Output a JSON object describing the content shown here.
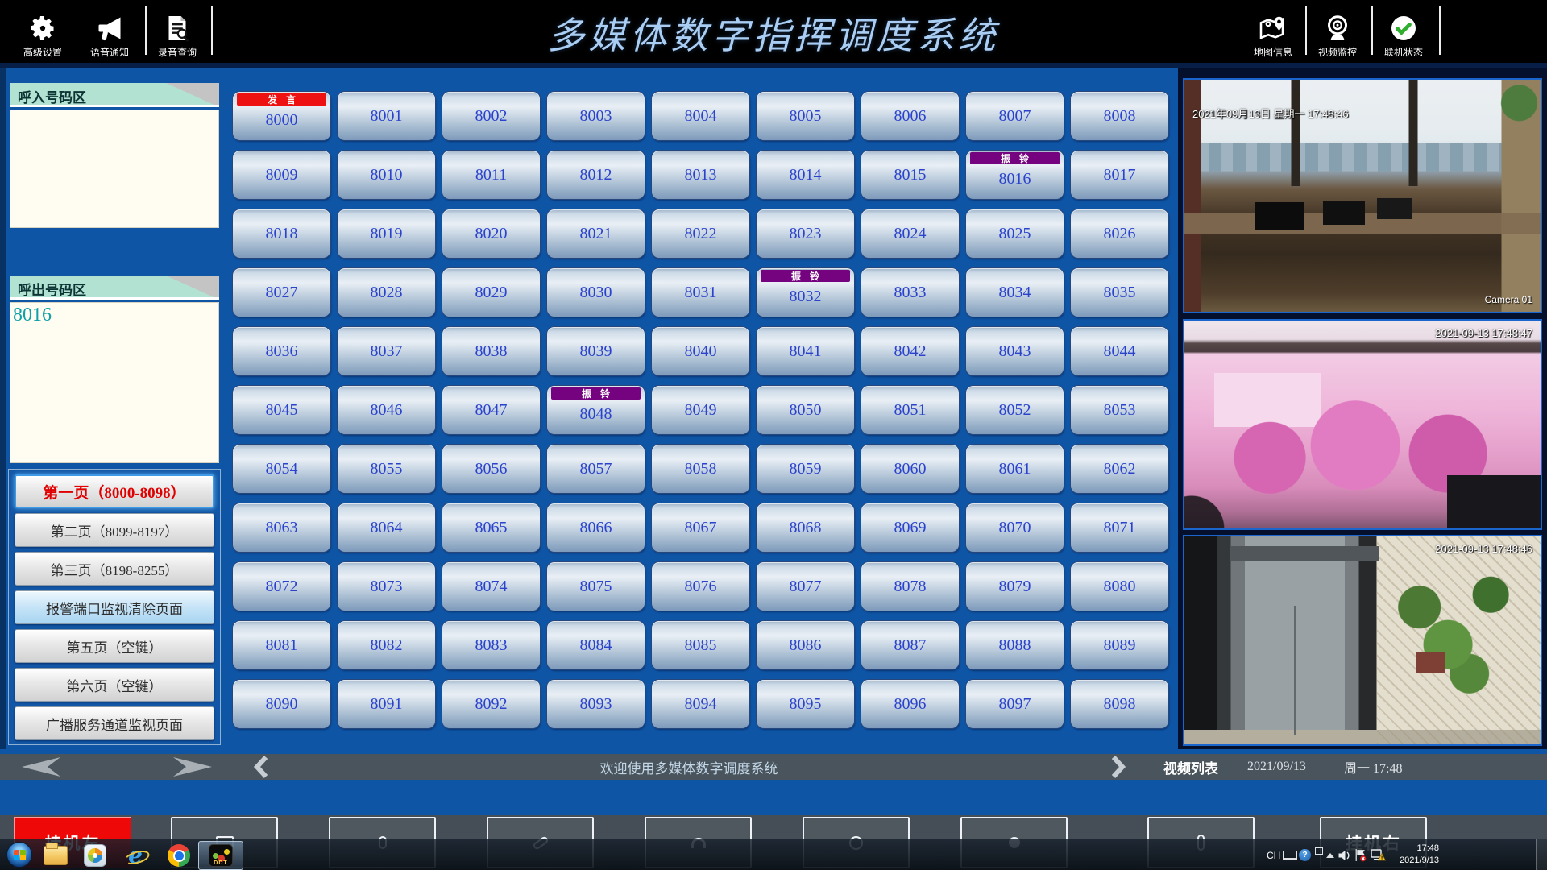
{
  "header": {
    "title": "多媒体数字指挥调度系统",
    "left_items": [
      {
        "icon": "gear-icon",
        "label": "高级设置"
      },
      {
        "icon": "megaphone-icon",
        "label": "语音通知"
      },
      {
        "icon": "record-search-icon",
        "label": "录音查询"
      }
    ],
    "right_items": [
      {
        "icon": "map-icon",
        "label": "地图信息"
      },
      {
        "icon": "webcam-icon",
        "label": "视频监控"
      },
      {
        "icon": "online-check-icon",
        "label": "联机状态"
      }
    ]
  },
  "sidebar": {
    "incoming_header": "呼入号码区",
    "incoming_value": "",
    "outgoing_header": "呼出号码区",
    "outgoing_value": "8016",
    "page_buttons": [
      {
        "label": "第一页（8000-8098）",
        "state": "active"
      },
      {
        "label": "第二页（8099-8197）",
        "state": "normal"
      },
      {
        "label": "第三页（8198-8255）",
        "state": "normal"
      },
      {
        "label": "报警端口监视清除页面",
        "state": "alarm"
      },
      {
        "label": "第五页（空键）",
        "state": "normal"
      },
      {
        "label": "第六页（空键）",
        "state": "normal"
      },
      {
        "label": "广播服务通道监视页面",
        "state": "normal"
      }
    ]
  },
  "grid": {
    "start": 8000,
    "end": 8098,
    "columns": 9,
    "badges": [
      {
        "number": 8000,
        "label": "发 言",
        "color": "#ee1111"
      },
      {
        "number": 8016,
        "label": "振 铃",
        "color": "#75027e"
      },
      {
        "number": 8032,
        "label": "振 铃",
        "color": "#75027e"
      },
      {
        "number": 8048,
        "label": "振 铃",
        "color": "#75027e"
      }
    ]
  },
  "videos": [
    {
      "scene": "office",
      "timestamp": "2021年09月13日 星期一 17:48:46",
      "camera_label": "Camera 01"
    },
    {
      "scene": "pink-outdoor",
      "timestamp": "2021-09-13 17:48:47",
      "camera_label": ""
    },
    {
      "scene": "elevator",
      "timestamp": "2021-09-13 17:48:46",
      "camera_label": ""
    }
  ],
  "statusbar": {
    "welcome": "欢迎使用多媒体数字调度系统",
    "video_list_label": "视频列表",
    "date": "2021/09/13",
    "weekday_time": "周一  17:48"
  },
  "toolbar": {
    "buttons": [
      {
        "label": "挂机左",
        "style": "red",
        "icon": ""
      },
      {
        "label": "",
        "style": "outline",
        "icon": "screen-icon"
      },
      {
        "label": "",
        "style": "outline",
        "icon": "mic-icon"
      },
      {
        "label": "",
        "style": "outline",
        "icon": "call-icon"
      },
      {
        "label": "",
        "style": "outline",
        "icon": "headset-icon"
      },
      {
        "label": "",
        "style": "outline",
        "icon": "camera-icon"
      },
      {
        "label": "",
        "style": "outline",
        "icon": "record-dot-icon"
      },
      {
        "label": "",
        "style": "outline",
        "icon": "handset-icon"
      },
      {
        "label": "挂机右",
        "style": "outline",
        "icon": ""
      }
    ]
  },
  "taskbar": {
    "ddt_label": "DDT",
    "tray": {
      "ime": "CH",
      "time": "17:48",
      "date": "2021/9/13"
    }
  },
  "colors": {
    "main_background": "#0f55a6",
    "speaking_badge": "#ee1111",
    "ringing_badge": "#75027e",
    "active_page_text": "#e00000",
    "extension_text": "#2b43cc"
  }
}
